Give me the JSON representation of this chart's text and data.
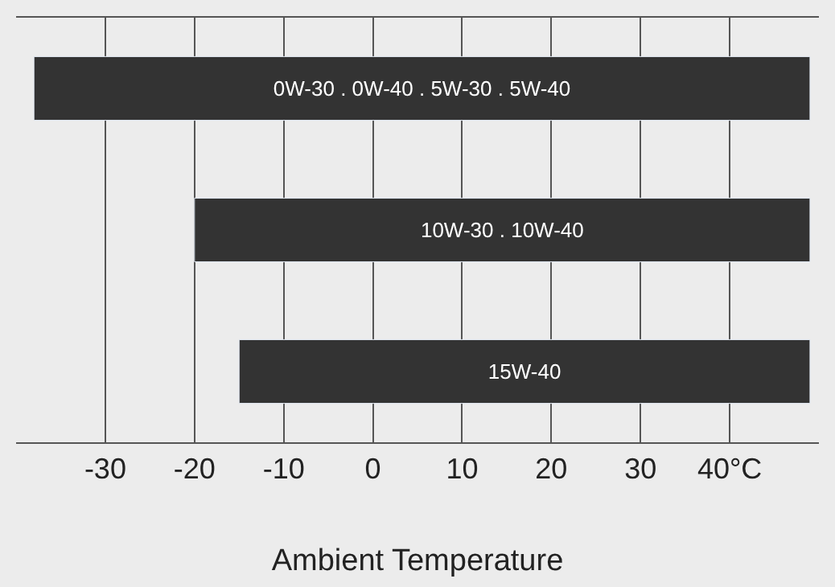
{
  "chart_data": {
    "type": "bar",
    "orientation": "horizontal",
    "xlabel": "Ambient Temperature",
    "categories": [
      "0W-30 . 0W-40 . 5W-30 . 5W-40",
      "10W-30 . 10W-40",
      "15W-40"
    ],
    "values": [
      87,
      69,
      64
    ],
    "base": [
      -38,
      -20,
      -15
    ],
    "color": "#333333",
    "xlim": [
      -40,
      50
    ],
    "xticks": [
      -30,
      -20,
      -10,
      0,
      10,
      20,
      30,
      {
        "value": 40,
        "label": "40°C"
      }
    ],
    "grid": "x",
    "tick_labels": "x"
  }
}
